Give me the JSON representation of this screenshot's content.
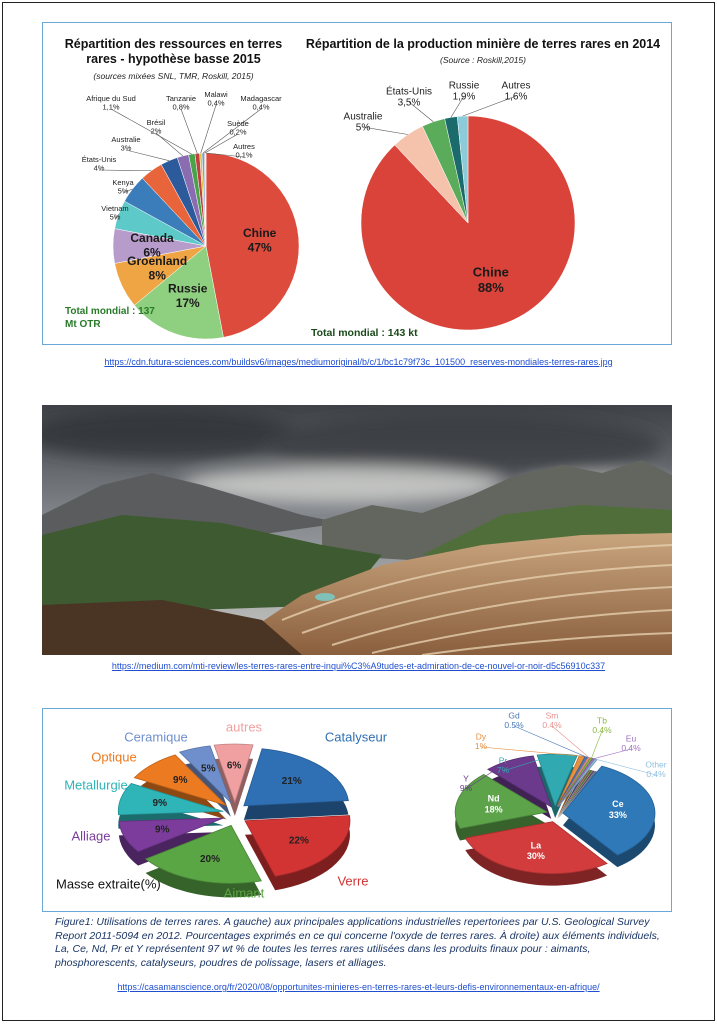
{
  "chart_data": [
    {
      "type": "pie",
      "title": "Répartition des ressources en terres rares - hypothèse basse 2015",
      "subtitle": "(sources mixées SNL, TMR, Roskill, 2015)",
      "total_label": "Total mondial : 137 Mt OTR",
      "categories": [
        "Chine",
        "Russie",
        "Groenland",
        "Canada",
        "Vietnam",
        "Kenya",
        "États-Unis",
        "Australie",
        "Brésil",
        "Afrique du Sud",
        "Tanzanie",
        "Malawi",
        "Madagascar",
        "Suède",
        "Autres"
      ],
      "values": [
        47,
        17,
        8,
        6,
        5,
        5,
        4,
        3,
        2,
        1.1,
        0.8,
        0.4,
        0.4,
        0.2,
        0.1
      ],
      "value_labels": [
        "47%",
        "17%",
        "8%",
        "6%",
        "5%",
        "5%",
        "4%",
        "3%",
        "2%",
        "1,1%",
        "0,8%",
        "0,4%",
        "0,4%",
        "0,2%",
        "0,1%"
      ],
      "colors": [
        "#dc4b3c",
        "#8fcf80",
        "#f0a545",
        "#b79ccb",
        "#5dc9c9",
        "#3b7cba",
        "#e8643a",
        "#2d5a9b",
        "#8a6cb1",
        "#4aa24a",
        "#c04040",
        "#e0c040",
        "#70a0d0",
        "#a0a0a0",
        "#d0d0f0"
      ]
    },
    {
      "type": "pie",
      "title": "Répartition de la production minière de terres rares en 2014",
      "subtitle": "(Source : Roskill,2015)",
      "total_label": "Total mondial : 143 kt",
      "categories": [
        "Chine",
        "Australie",
        "États-Unis",
        "Russie",
        "Autres"
      ],
      "values": [
        88,
        5,
        3.5,
        1.9,
        1.6
      ],
      "value_labels": [
        "88%",
        "5%",
        "3,5%",
        "1,9%",
        "1,6%"
      ],
      "colors": [
        "#d9433a",
        "#f5c3ac",
        "#5aab5a",
        "#1b6b6d",
        "#8ccbd9"
      ]
    },
    {
      "type": "pie",
      "title": "Masse extraite(%)",
      "categories": [
        "Catalyseur",
        "Verre",
        "Aimant",
        "Alliage",
        "Metallurgie",
        "Optique",
        "Ceramique",
        "autres"
      ],
      "values": [
        21,
        22,
        20,
        9,
        9,
        9,
        5,
        6
      ],
      "value_labels": [
        "21%",
        "22%",
        "20%",
        "9%",
        "9%",
        "9%",
        "5%",
        "6%"
      ],
      "colors": [
        "#2f6fb3",
        "#d23434",
        "#5aa544",
        "#7b3c9c",
        "#2fb4b7",
        "#ec7a20",
        "#6f8fcc",
        "#f0a0a0"
      ]
    },
    {
      "type": "pie",
      "categories": [
        "Ce",
        "La",
        "Nd",
        "Y",
        "Pr",
        "Dy",
        "Gd",
        "Sm",
        "Tb",
        "Eu",
        "Other"
      ],
      "values": [
        33,
        30,
        18,
        9,
        7,
        1,
        0.5,
        0.4,
        0.4,
        0.4,
        0.4
      ],
      "value_labels": [
        "33%",
        "30%",
        "18%",
        "9%",
        "7%",
        "1%",
        "0.5%",
        "0.4%",
        "0.4%",
        "0.4%",
        "0.4%"
      ],
      "colors": [
        "#2f79b9",
        "#d23c3c",
        "#5ca34a",
        "#6b3a8c",
        "#31a9b1",
        "#e89040",
        "#4a78b8",
        "#e89090",
        "#8ab840",
        "#a070c0",
        "#90c0e0"
      ]
    }
  ],
  "links": [
    "https://cdn.futura-sciences.com/buildsv6/images/mediumoriginal/b/c/1/bc1c79f73c_101500_reserves-mondiales-terres-rares.jpg",
    "https://medium.com/mti-review/les-terres-rares-entre-inqui%C3%A9tudes-et-admiration-de-ce-nouvel-or-noir-d5c56910c337",
    "https://casamanscience.org/fr/2020/08/opportunites-minieres-en-terres-rares-et-leurs-defis-environnementaux-en-afrique/"
  ],
  "caption": "Figure1: Utilisations de terres rares. A gauche) aux principales applications industrielles repertoriees par U.S. Geological Survey Report 2011-5094 en 2012. Pourcentages exprimés en ce qui concerne l'oxyde de  terres rares. À droite) aux éléments individuels, La, Ce, Nd, Pr et Y représentent 97 wt % de toutes les terres rares utilisées dans les produits finaux pour : aimants, phosphorescents, catalyseurs, poudres de polissage, lasers et alliages."
}
